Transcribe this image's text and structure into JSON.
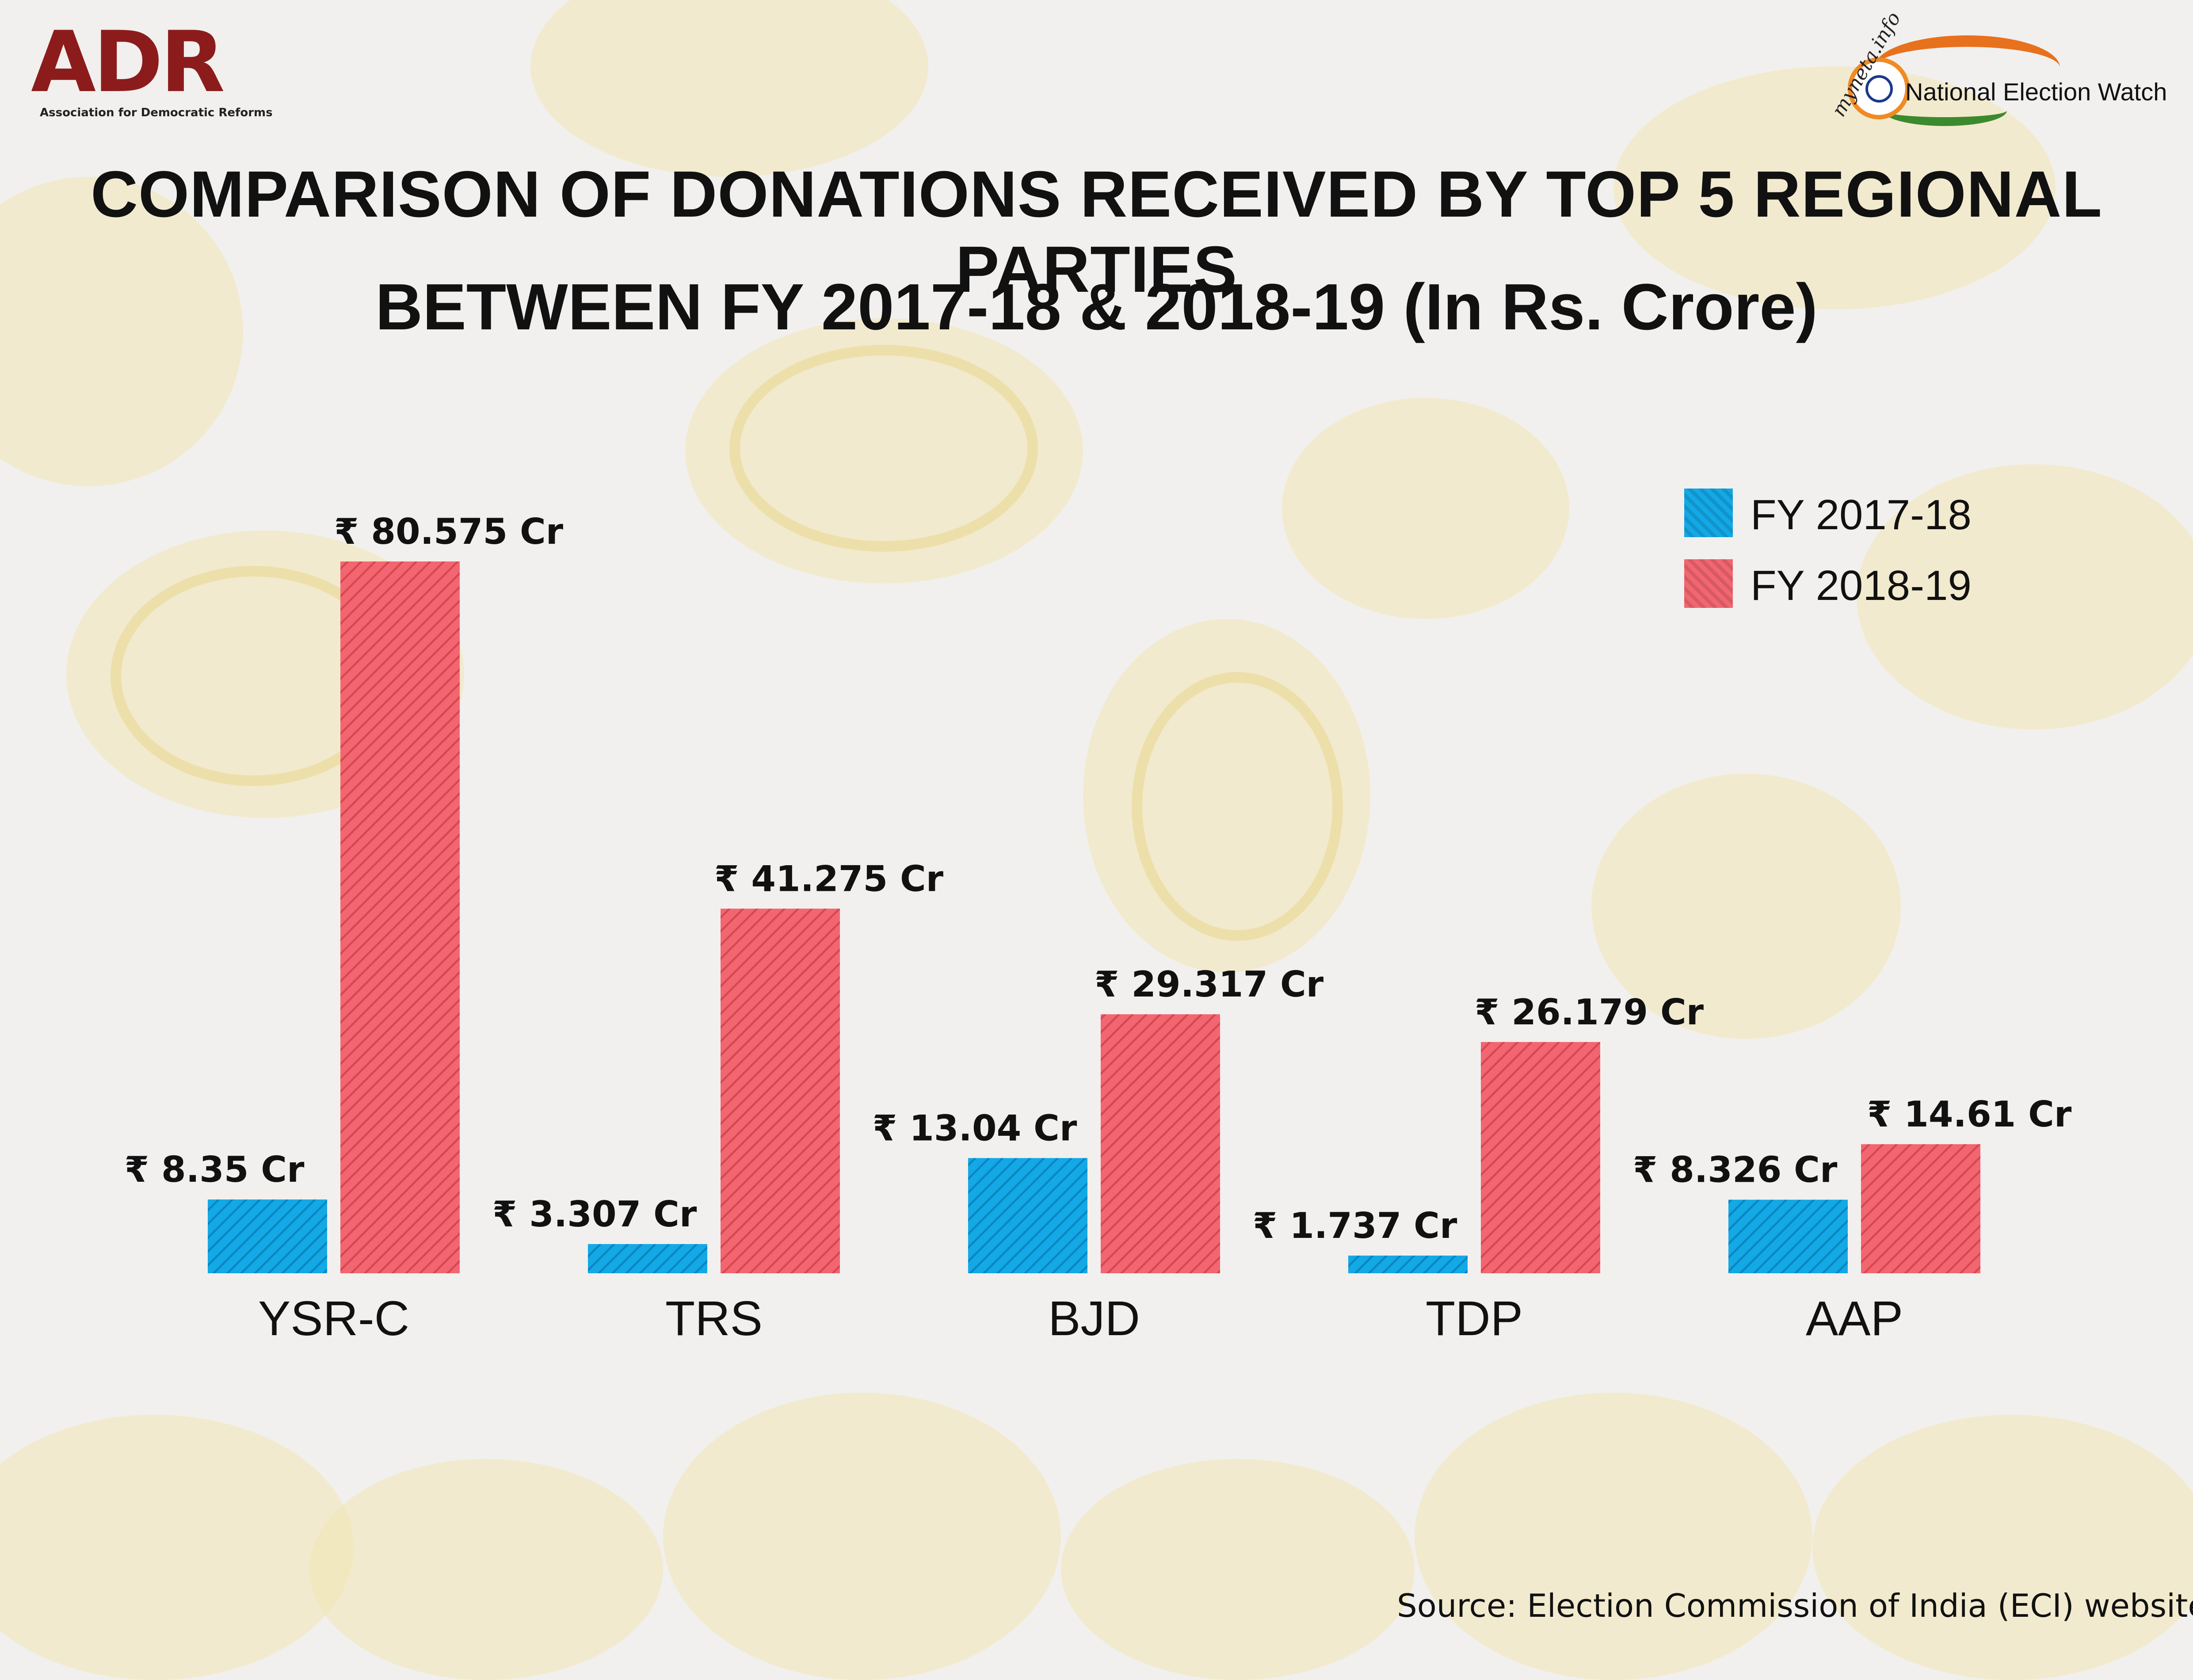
{
  "logos": {
    "adr_name": "ADR",
    "adr_tagline": "Association for Democratic Reforms",
    "myneta": "myneta.info",
    "new_name": "National Election Watch"
  },
  "header": {
    "title_line1": "COMPARISON OF DONATIONS RECEIVED BY TOP 5 REGIONAL PARTIES",
    "title_line2": "BETWEEN  FY 2017-18 & 2018-19 (In Rs. Crore)"
  },
  "legend": {
    "items": [
      {
        "label": "FY 2017-18",
        "color": "#13a8e6"
      },
      {
        "label": "FY 2018-19",
        "color": "#f26671"
      }
    ]
  },
  "source": "Source: Election Commission of India (ECI) website",
  "chart_data": {
    "type": "bar",
    "title": "COMPARISON OF DONATIONS RECEIVED BY TOP 5 REGIONAL PARTIES BETWEEN  FY 2017-18 & 2018-19 (In Rs. Crore)",
    "categories": [
      "YSR-C",
      "TRS",
      "BJD",
      "TDP",
      "AAP"
    ],
    "series": [
      {
        "name": "FY 2017-18",
        "color": "#13a8e6",
        "values": [
          8.35,
          3.307,
          13.04,
          1.737,
          8.326
        ],
        "labels": [
          "₹ 8.35 Cr",
          "₹ 3.307 Cr",
          "₹ 13.04 Cr",
          "₹ 1.737 Cr",
          "₹ 8.326 Cr"
        ]
      },
      {
        "name": "FY 2018-19",
        "color": "#f26671",
        "values": [
          80.575,
          41.275,
          29.317,
          26.179,
          14.61
        ],
        "labels": [
          "₹ 80.575 Cr",
          "₹ 41.275 Cr",
          "₹ 29.317 Cr",
          "₹ 26.179 Cr",
          "₹ 14.61 Cr"
        ]
      }
    ],
    "xlabel": "",
    "ylabel": "",
    "ylim": [
      0,
      80.575
    ],
    "grid": false,
    "legend_position": "top-right"
  }
}
